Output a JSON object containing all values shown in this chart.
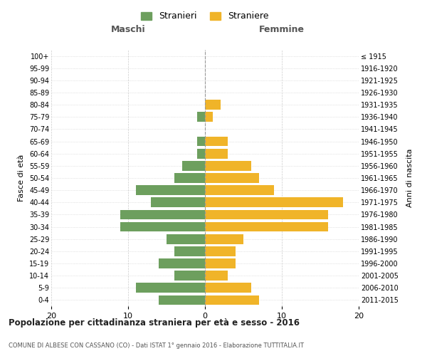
{
  "age_groups": [
    "0-4",
    "5-9",
    "10-14",
    "15-19",
    "20-24",
    "25-29",
    "30-34",
    "35-39",
    "40-44",
    "45-49",
    "50-54",
    "55-59",
    "60-64",
    "65-69",
    "70-74",
    "75-79",
    "80-84",
    "85-89",
    "90-94",
    "95-99",
    "100+"
  ],
  "birth_years": [
    "2011-2015",
    "2006-2010",
    "2001-2005",
    "1996-2000",
    "1991-1995",
    "1986-1990",
    "1981-1985",
    "1976-1980",
    "1971-1975",
    "1966-1970",
    "1961-1965",
    "1956-1960",
    "1951-1955",
    "1946-1950",
    "1941-1945",
    "1936-1940",
    "1931-1935",
    "1926-1930",
    "1921-1925",
    "1916-1920",
    "≤ 1915"
  ],
  "maschi": [
    6,
    9,
    4,
    6,
    4,
    5,
    11,
    11,
    7,
    9,
    4,
    3,
    1,
    1,
    0,
    1,
    0,
    0,
    0,
    0,
    0
  ],
  "femmine": [
    7,
    6,
    3,
    4,
    4,
    5,
    16,
    16,
    18,
    9,
    7,
    6,
    3,
    3,
    0,
    1,
    2,
    0,
    0,
    0,
    0
  ],
  "male_color": "#6d9f5e",
  "female_color": "#f0b429",
  "background_color": "#ffffff",
  "grid_color": "#cccccc",
  "title": "Popolazione per cittadinanza straniera per età e sesso - 2016",
  "subtitle": "COMUNE DI ALBESE CON CASSANO (CO) - Dati ISTAT 1° gennaio 2016 - Elaborazione TUTTITALIA.IT",
  "ylabel_left": "Fasce di età",
  "ylabel_right": "Anni di nascita",
  "label_maschi": "Maschi",
  "label_femmine": "Femmine",
  "legend_male": "Stranieri",
  "legend_female": "Straniere",
  "xlim": 20,
  "bar_height": 0.8
}
